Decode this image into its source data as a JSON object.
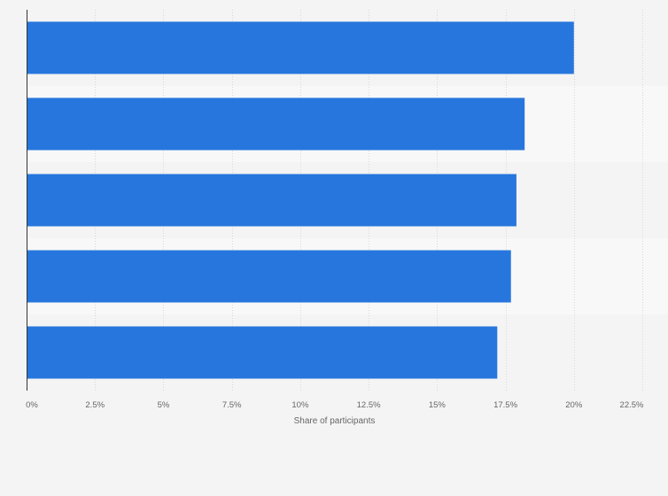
{
  "chart_data": {
    "type": "bar",
    "orientation": "horizontal",
    "title": "",
    "xlabel": "Share of participants",
    "ylabel": "",
    "categories": [
      "",
      "",
      "",
      "",
      ""
    ],
    "series": [
      {
        "values": [
          20.0,
          18.2,
          17.9,
          17.7,
          17.2
        ]
      }
    ],
    "xlim": [
      0,
      22.5
    ],
    "ticks": [
      "0%",
      "2.5%",
      "5%",
      "7.5%",
      "10%",
      "12.5%",
      "15%",
      "17.5%",
      "20%",
      "22.5%"
    ],
    "grid": true,
    "legend": "none",
    "colors": {
      "bar": "#2776dd",
      "band_odd": "#f4f4f4",
      "band_even": "#f8f8f8"
    }
  }
}
